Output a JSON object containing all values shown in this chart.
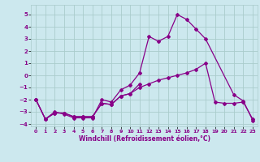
{
  "xlabel": "Windchill (Refroidissement éolien,°C)",
  "background_color": "#cce8ee",
  "line_color": "#880088",
  "grid_color": "#aacccc",
  "xlim": [
    -0.5,
    23.5
  ],
  "ylim": [
    -4.2,
    5.8
  ],
  "yticks": [
    -4,
    -3,
    -2,
    -1,
    0,
    1,
    2,
    3,
    4,
    5
  ],
  "xticks": [
    0,
    1,
    2,
    3,
    4,
    5,
    6,
    7,
    8,
    9,
    10,
    11,
    12,
    13,
    14,
    15,
    16,
    17,
    18,
    19,
    20,
    21,
    22,
    23
  ],
  "series": [
    {
      "x": [
        0,
        1,
        2,
        3,
        4,
        5,
        6,
        7,
        8,
        9,
        10,
        11,
        12,
        13,
        14,
        15,
        16,
        17,
        18,
        21,
        22,
        23
      ],
      "y": [
        -2.0,
        -3.6,
        -3.0,
        -3.2,
        -3.5,
        -3.5,
        -3.5,
        -2.0,
        -2.2,
        -1.2,
        -0.8,
        0.2,
        3.2,
        2.8,
        3.2,
        5.0,
        4.6,
        3.8,
        3.0,
        -1.6,
        -2.1,
        -3.7
      ]
    },
    {
      "x": [
        0,
        1,
        2,
        3,
        4,
        5,
        6,
        7,
        8,
        9,
        10,
        11,
        12,
        13,
        14,
        15,
        16,
        17,
        18,
        19,
        20,
        21,
        22,
        23
      ],
      "y": [
        -2.0,
        -3.6,
        -3.1,
        -3.1,
        -3.4,
        -3.4,
        -3.4,
        -2.3,
        -2.4,
        -1.7,
        -1.5,
        -1.0,
        -0.7,
        -0.4,
        -0.2,
        0.0,
        0.2,
        0.5,
        1.0,
        -2.2,
        -2.3,
        -2.3,
        -2.2,
        -3.6
      ]
    },
    {
      "x": [
        0,
        1,
        2,
        3,
        4,
        5,
        6,
        7,
        8,
        9,
        10,
        11
      ],
      "y": [
        -2.0,
        -3.6,
        -3.1,
        -3.1,
        -3.4,
        -3.4,
        -3.4,
        -2.3,
        -2.4,
        -1.7,
        -1.5,
        -0.7
      ]
    }
  ]
}
